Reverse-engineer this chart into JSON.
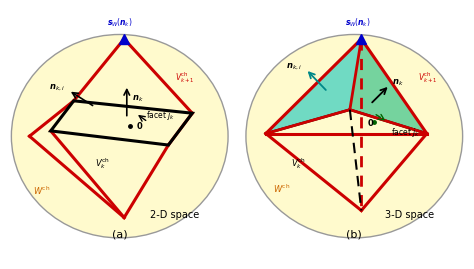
{
  "fig_width": 4.74,
  "fig_height": 2.69,
  "bg_color": "#ffffff",
  "ellipse_fill": "#FFFACD",
  "ellipse_edge": "#aaaaaa",
  "red_line": "#cc0000",
  "black_line": "#000000",
  "blue_color": "#0000cc",
  "orange_color": "#cc6600",
  "cyan_fill": "#40d0c0",
  "green_fill": "#60c878",
  "label_a": "(a)",
  "label_b": "(b)",
  "space_2d": "2-D space",
  "space_3d": "3-D space"
}
